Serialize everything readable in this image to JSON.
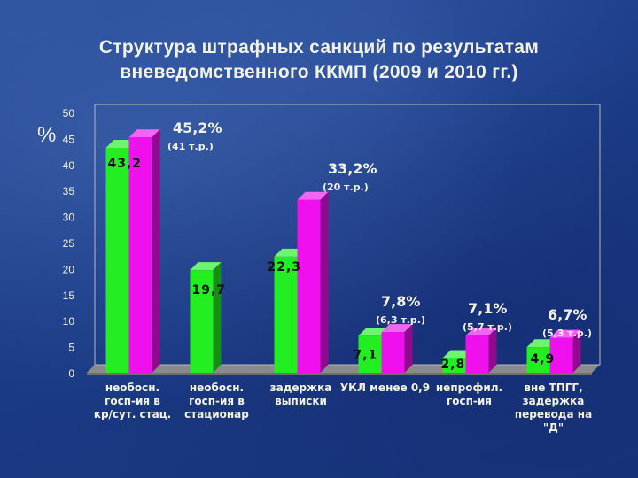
{
  "title": {
    "line1": "Структура штрафных санкций по результатам",
    "line2": "вневедомственного ККМП (2009 и 2010 гг.)"
  },
  "chart_data": {
    "type": "bar",
    "ylabel": "%",
    "ylim": [
      0,
      50
    ],
    "yticks": [
      0,
      5,
      10,
      15,
      20,
      25,
      30,
      35,
      40,
      45,
      50
    ],
    "categories": [
      [
        "необосн.",
        "госп-ия в",
        "кр/сут. стац."
      ],
      [
        "необосн.",
        "госп-ия в",
        "стационар"
      ],
      [
        "задержка",
        "выписки"
      ],
      [
        "УКЛ менее 0,9"
      ],
      [
        "непрофил.",
        "госп-ия"
      ],
      [
        "вне ТПГГ,",
        "задержка",
        "перевода на",
        "\"Д\""
      ]
    ],
    "series": [
      {
        "color": "#22ee22",
        "values": [
          43.2,
          19.7,
          22.3,
          7.1,
          2.8,
          4.9
        ],
        "labels": [
          "43,2",
          "19,7",
          "22,3",
          "7,1",
          "2,8",
          "4,9"
        ]
      },
      {
        "color": "#ee11ee",
        "values": [
          45.2,
          null,
          33.2,
          7.8,
          7.1,
          6.7
        ],
        "labels": [
          "45,2%",
          "",
          "33,2%",
          "7,8%",
          "7,1%",
          "6,7%"
        ]
      }
    ],
    "annotations": [
      {
        "category": 0,
        "pct": "45,2%",
        "sum": "(41 т.р.)"
      },
      {
        "category": 2,
        "pct": "33,2%",
        "sum": "(20 т.р.)"
      },
      {
        "category": 3,
        "pct": "7,8%",
        "sum": "(6,3 т.р.)"
      },
      {
        "category": 4,
        "pct": "7,1%",
        "sum": "(5,7 т.р.)"
      },
      {
        "category": 5,
        "pct": "6,7%",
        "sum": "(5,3 т.р.)"
      }
    ],
    "grid": false
  },
  "colors": {
    "text": "#f2f2e6",
    "label": "#111111",
    "plot_border": "#b8b8b8",
    "floor": "#8a8a8a"
  }
}
